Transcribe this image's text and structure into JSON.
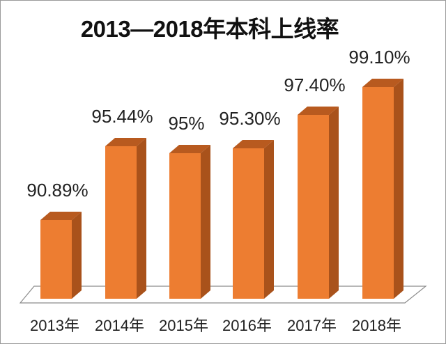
{
  "title": "2013—2018年本科上线率",
  "colors": {
    "bar_front": "#ED7D31",
    "bar_top": "#B85A1F",
    "bar_side": "#A9521B",
    "floor_stroke": "#8c8c8c"
  },
  "chart_data": {
    "type": "bar",
    "style": "3d-column",
    "title": "2013—2018年本科上线率",
    "categories": [
      "2013年",
      "2014年",
      "2015年",
      "2016年",
      "2017年",
      "2018年"
    ],
    "values": [
      90.89,
      95.44,
      95,
      95.3,
      97.4,
      99.1
    ],
    "data_labels": [
      "90.89%",
      "95.44%",
      "95%",
      "95.30%",
      "97.40%",
      "99.10%"
    ],
    "xlabel": "",
    "ylabel": "",
    "unit": "%",
    "grid": false,
    "legend": "none"
  }
}
